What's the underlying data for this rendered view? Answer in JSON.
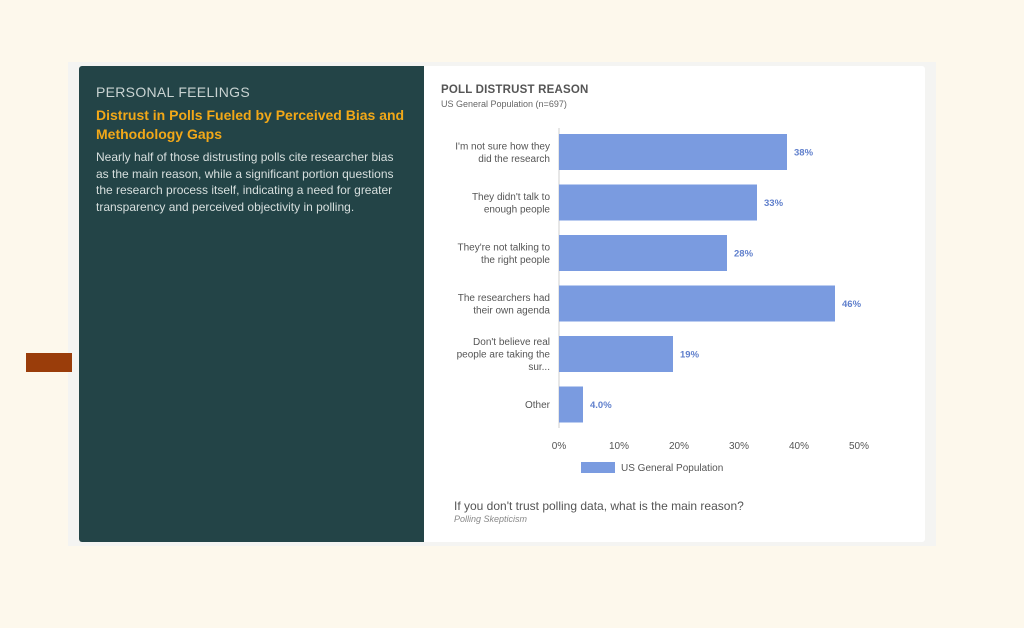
{
  "left": {
    "section_label": "PERSONAL FEELINGS",
    "headline": "Distrust in Polls Fueled by Perceived Bias and Methodology Gaps",
    "body": "Nearly half of those distrusting polls cite researcher bias as the main reason, while a significant portion questions the research process itself, indicating a need for greater transparency and perceived objectivity in polling."
  },
  "chart_data": {
    "type": "bar",
    "orientation": "horizontal",
    "title": "POLL DISTRUST REASON",
    "subtitle": "US General Population (n=697)",
    "categories": [
      [
        "I'm not sure how they",
        "did the research"
      ],
      [
        "They didn't talk to",
        "enough people"
      ],
      [
        "They're not talking to",
        "the right people"
      ],
      [
        "The researchers had",
        "their own agenda"
      ],
      [
        "Don't believe real",
        "people are taking the",
        "sur..."
      ],
      [
        "Other"
      ]
    ],
    "series": [
      {
        "name": "US General Population",
        "values": [
          38,
          33,
          28,
          46,
          19,
          4.0
        ],
        "value_labels": [
          "38%",
          "33%",
          "28%",
          "46%",
          "19%",
          "4.0%"
        ],
        "color": "#7a9be0",
        "label_color": "#5f7fcc"
      }
    ],
    "xlim": [
      0,
      50
    ],
    "xticks": [
      0,
      10,
      20,
      30,
      40,
      50
    ],
    "xtick_labels": [
      "0%",
      "10%",
      "20%",
      "30%",
      "40%",
      "50%"
    ],
    "grid": false,
    "legend": "bottom"
  },
  "footer": {
    "question": "If you don't trust polling data, what is the main reason?",
    "source": "Polling Skepticism"
  },
  "colors": {
    "left_panel": "#234447",
    "headline": "#f2a818",
    "page_background": "#fdf8ec",
    "accent_tab": "#9a3d0a"
  }
}
